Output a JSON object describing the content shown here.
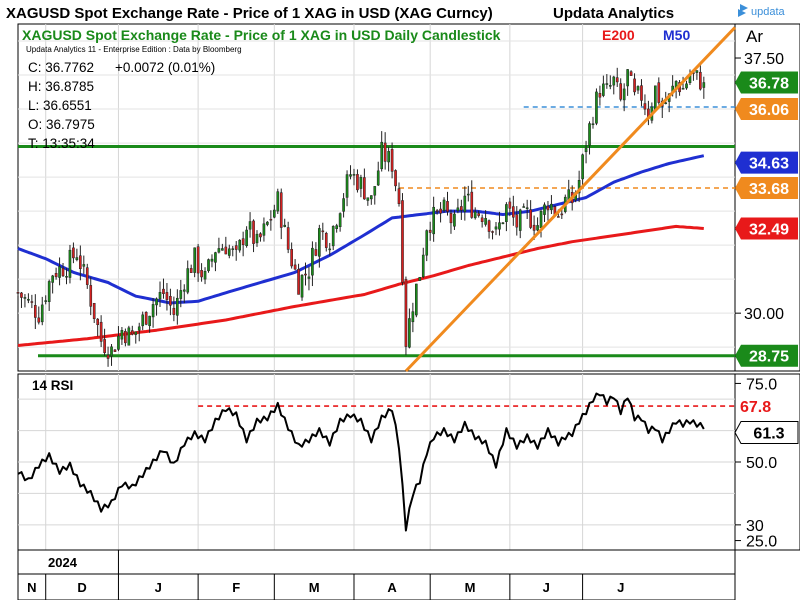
{
  "header": {
    "title": "XAGUSD Spot Exchange Rate - Price of 1 XAG in USD (XAG Curncy)",
    "publisher": "Updata Analytics",
    "logo_text": "updata"
  },
  "chart_data": [
    {
      "type": "candlestick",
      "title": "XAGUSD Spot Exchange Rate - Price of 1 XAG in USD Daily Candlestick",
      "edition": "Updata Analytics 11 - Enterprise Edition : Data by Bloomberg",
      "corner_label": "Ar",
      "legend": [
        {
          "name": "E200",
          "color": "#e8191a"
        },
        {
          "name": "M50",
          "color": "#1f2fd1"
        }
      ],
      "readout": {
        "close": "C: 36.7762",
        "change": "+0.0072 (0.01%)",
        "high": "H: 36.8785",
        "low": "L: 36.6551",
        "open": "O: 36.7975",
        "time": "T: 13:35:34"
      },
      "ylim": [
        28.3,
        38.5
      ],
      "yticks": [
        "37.50",
        "30.00"
      ],
      "ytick_values": [
        37.5,
        30.0
      ],
      "ohlc_anchor_closes": [
        [
          0,
          30.6
        ],
        [
          6,
          30.0
        ],
        [
          10,
          31.2
        ],
        [
          14,
          31.4
        ],
        [
          17,
          31.8
        ],
        [
          20,
          30.8
        ],
        [
          24,
          29.2
        ],
        [
          27,
          28.9
        ],
        [
          30,
          29.5
        ],
        [
          33,
          29.3
        ],
        [
          36,
          29.8
        ],
        [
          39,
          30.3
        ],
        [
          42,
          30.6
        ],
        [
          45,
          30.0
        ],
        [
          48,
          31.0
        ],
        [
          51,
          31.6
        ],
        [
          54,
          31.0
        ],
        [
          57,
          31.9
        ],
        [
          60,
          32.0
        ],
        [
          63,
          31.6
        ],
        [
          66,
          32.6
        ],
        [
          69,
          32.0
        ],
        [
          72,
          32.6
        ],
        [
          75,
          33.3
        ],
        [
          78,
          31.9
        ],
        [
          81,
          30.9
        ],
        [
          84,
          31.3
        ],
        [
          87,
          32.4
        ],
        [
          90,
          32.2
        ],
        [
          93,
          33.2
        ],
        [
          96,
          34.1
        ],
        [
          99,
          33.8
        ],
        [
          102,
          33.3
        ],
        [
          105,
          34.7
        ],
        [
          108,
          34.4
        ],
        [
          110,
          33.3
        ],
        [
          112,
          29.2
        ],
        [
          114,
          30.3
        ],
        [
          116,
          31.2
        ],
        [
          118,
          32.6
        ],
        [
          120,
          32.8
        ],
        [
          123,
          33.0
        ],
        [
          126,
          32.6
        ],
        [
          129,
          33.4
        ],
        [
          132,
          33.0
        ],
        [
          135,
          32.9
        ],
        [
          138,
          32.3
        ],
        [
          141,
          33.1
        ],
        [
          144,
          32.6
        ],
        [
          147,
          32.9
        ],
        [
          150,
          32.6
        ],
        [
          153,
          33.3
        ],
        [
          156,
          32.9
        ],
        [
          158,
          33.3
        ],
        [
          160,
          33.3
        ],
        [
          162,
          33.9
        ],
        [
          164,
          35.0
        ],
        [
          166,
          35.9
        ],
        [
          168,
          36.6
        ],
        [
          170,
          36.5
        ],
        [
          172,
          36.8
        ],
        [
          174,
          36.2
        ],
        [
          176,
          37.0
        ],
        [
          178,
          36.3
        ],
        [
          180,
          36.4
        ],
        [
          182,
          35.9
        ],
        [
          184,
          36.6
        ],
        [
          186,
          36.1
        ],
        [
          188,
          36.3
        ],
        [
          190,
          36.8
        ],
        [
          192,
          36.6
        ],
        [
          194,
          37.0
        ],
        [
          196,
          36.9
        ],
        [
          198,
          36.78
        ]
      ],
      "series": [
        {
          "name": "E200",
          "values": [
            [
              0,
              29.05
            ],
            [
              20,
              29.25
            ],
            [
              40,
              29.5
            ],
            [
              60,
              29.8
            ],
            [
              80,
              30.2
            ],
            [
              100,
              30.55
            ],
            [
              110,
              30.85
            ],
            [
              120,
              31.1
            ],
            [
              130,
              31.4
            ],
            [
              140,
              31.65
            ],
            [
              150,
              31.9
            ],
            [
              160,
              32.1
            ],
            [
              170,
              32.25
            ],
            [
              180,
              32.4
            ],
            [
              190,
              32.55
            ],
            [
              198,
              32.49
            ]
          ]
        },
        {
          "name": "M50",
          "values": [
            [
              0,
              31.9
            ],
            [
              8,
              31.6
            ],
            [
              16,
              31.2
            ],
            [
              26,
              30.9
            ],
            [
              34,
              30.5
            ],
            [
              44,
              30.3
            ],
            [
              52,
              30.35
            ],
            [
              60,
              30.6
            ],
            [
              70,
              30.9
            ],
            [
              80,
              31.2
            ],
            [
              90,
              31.7
            ],
            [
              100,
              32.3
            ],
            [
              108,
              32.8
            ],
            [
              116,
              32.9
            ],
            [
              124,
              33.0
            ],
            [
              132,
              33.0
            ],
            [
              140,
              32.9
            ],
            [
              148,
              33.0
            ],
            [
              156,
              33.2
            ],
            [
              164,
              33.4
            ],
            [
              172,
              33.85
            ],
            [
              180,
              34.15
            ],
            [
              188,
              34.4
            ],
            [
              198,
              34.63
            ]
          ]
        }
      ],
      "levels": [
        {
          "name": "resistance-level",
          "value": 34.9,
          "color": "#1a8a1a",
          "style": "solid"
        },
        {
          "name": "support-level",
          "value": 28.75,
          "color": "#1a8a1a",
          "style": "solid"
        },
        {
          "name": "dashed-level-high",
          "value": 36.06,
          "color": "#3b8fd9",
          "style": "dashed"
        },
        {
          "name": "dashed-level-mid",
          "value": 33.68,
          "color": "#f08a1e",
          "style": "dashed"
        }
      ],
      "trendline": {
        "color": "#f08a1e",
        "from": [
          112,
          28.3
        ],
        "to": [
          213,
          38.4
        ]
      },
      "price_tags": [
        {
          "label": "36.78",
          "value": 36.78,
          "color": "#1a8a1a"
        },
        {
          "label": "36.06",
          "value": 36.06,
          "color": "#f08a1e"
        },
        {
          "label": "34.63",
          "value": 34.63,
          "color": "#1f2fd1"
        },
        {
          "label": "33.68",
          "value": 33.68,
          "color": "#f08a1e"
        },
        {
          "label": "32.49",
          "value": 32.49,
          "color": "#e8191a"
        },
        {
          "label": "28.75",
          "value": 28.75,
          "color": "#1a8a1a"
        }
      ]
    },
    {
      "type": "line",
      "title": "14 RSI",
      "ylim": [
        22,
        78
      ],
      "yticks": [
        "75.0",
        "50.0",
        "30",
        "25.0"
      ],
      "ytick_values": [
        75,
        50,
        30,
        25
      ],
      "overbought_level": {
        "label": "67.8",
        "value": 67.8,
        "color": "#e8191a"
      },
      "current_tag": {
        "label": "61.3",
        "value": 61.3
      },
      "values": [
        [
          0,
          47
        ],
        [
          3,
          44
        ],
        [
          6,
          49
        ],
        [
          9,
          52
        ],
        [
          12,
          47
        ],
        [
          15,
          49
        ],
        [
          18,
          43
        ],
        [
          21,
          40
        ],
        [
          24,
          35
        ],
        [
          27,
          37
        ],
        [
          30,
          43
        ],
        [
          33,
          42
        ],
        [
          36,
          46
        ],
        [
          39,
          50
        ],
        [
          42,
          54
        ],
        [
          45,
          49
        ],
        [
          48,
          56
        ],
        [
          51,
          59
        ],
        [
          54,
          57
        ],
        [
          57,
          63
        ],
        [
          60,
          67
        ],
        [
          63,
          65
        ],
        [
          66,
          57
        ],
        [
          69,
          63
        ],
        [
          72,
          64
        ],
        [
          75,
          68
        ],
        [
          78,
          61
        ],
        [
          81,
          55
        ],
        [
          84,
          57
        ],
        [
          87,
          60
        ],
        [
          90,
          56
        ],
        [
          93,
          63
        ],
        [
          96,
          65
        ],
        [
          99,
          63
        ],
        [
          102,
          57
        ],
        [
          105,
          64
        ],
        [
          108,
          67
        ],
        [
          110,
          55
        ],
        [
          112,
          29
        ],
        [
          114,
          40
        ],
        [
          116,
          44
        ],
        [
          118,
          53
        ],
        [
          120,
          58
        ],
        [
          123,
          60
        ],
        [
          126,
          57
        ],
        [
          129,
          62
        ],
        [
          132,
          58
        ],
        [
          135,
          56
        ],
        [
          138,
          49
        ],
        [
          141,
          60
        ],
        [
          144,
          55
        ],
        [
          147,
          58
        ],
        [
          150,
          55
        ],
        [
          153,
          60
        ],
        [
          156,
          56
        ],
        [
          158,
          58
        ],
        [
          160,
          59
        ],
        [
          162,
          63
        ],
        [
          164,
          66
        ],
        [
          166,
          70
        ],
        [
          168,
          72
        ],
        [
          170,
          69
        ],
        [
          172,
          71
        ],
        [
          174,
          66
        ],
        [
          176,
          71
        ],
        [
          178,
          64
        ],
        [
          180,
          64
        ],
        [
          182,
          60
        ],
        [
          184,
          61
        ],
        [
          186,
          57
        ],
        [
          188,
          60
        ],
        [
          190,
          63
        ],
        [
          192,
          62
        ],
        [
          194,
          63
        ],
        [
          196,
          62
        ],
        [
          198,
          61.3
        ]
      ]
    }
  ],
  "time_axis": {
    "year_label": "2024",
    "months": [
      {
        "label": "N",
        "start": 0
      },
      {
        "label": "D",
        "start": 8
      },
      {
        "label": "J",
        "start": 29
      },
      {
        "label": "F",
        "start": 52
      },
      {
        "label": "M",
        "start": 74
      },
      {
        "label": "A",
        "start": 97
      },
      {
        "label": "M",
        "start": 119
      },
      {
        "label": "J",
        "start": 142
      },
      {
        "label": "J",
        "start": 163
      }
    ],
    "range": [
      0,
      207
    ]
  }
}
